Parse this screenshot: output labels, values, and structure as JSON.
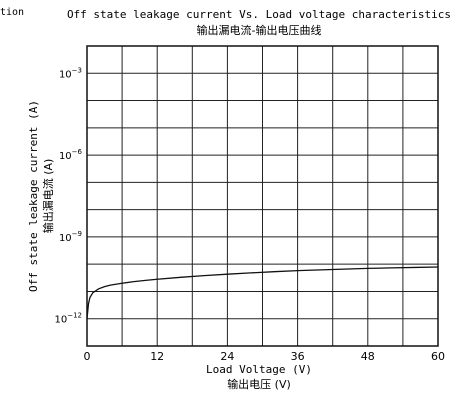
{
  "page": {
    "corner_fragment": "tion"
  },
  "chart_data": {
    "type": "line",
    "title": "Off state leakage current Vs. Load voltage characteristics",
    "subtitle": "输出漏电流-输出电压曲线",
    "xlabel": "Load Voltage (V)",
    "xlabel_cn": "输出电压 (V)",
    "ylabel": "Off state leakage current (A)",
    "ylabel_cn": "输出漏电流 (A)",
    "x_scale": "linear",
    "y_scale": "log",
    "xlim": [
      0,
      60
    ],
    "ylim": [
      1e-13,
      0.01
    ],
    "grid": true,
    "x_gridlines": [
      0,
      6,
      12,
      18,
      24,
      30,
      36,
      42,
      48,
      54,
      60
    ],
    "y_gridlines_exp": [
      -13,
      -12,
      -11,
      -10,
      -9,
      -8,
      -7,
      -6,
      -5,
      -4,
      -3,
      -2
    ],
    "x_ticks": [
      {
        "value": 0,
        "label": "0"
      },
      {
        "value": 12,
        "label": "12"
      },
      {
        "value": 24,
        "label": "24"
      },
      {
        "value": 36,
        "label": "36"
      },
      {
        "value": 48,
        "label": "48"
      },
      {
        "value": 60,
        "label": "60"
      }
    ],
    "y_ticks": [
      {
        "exp": -3,
        "base": "10",
        "sup": "−3"
      },
      {
        "exp": -6,
        "base": "10",
        "sup": "−6"
      },
      {
        "exp": -9,
        "base": "10",
        "sup": "−9"
      },
      {
        "exp": -12,
        "base": "10",
        "sup": "−12"
      }
    ],
    "series": [
      {
        "color": "#111111",
        "x": [
          0,
          0.25,
          0.5,
          1,
          2,
          3,
          4,
          6,
          8,
          10,
          12,
          16,
          20,
          24,
          28,
          32,
          36,
          40,
          44,
          48,
          52,
          56,
          60
        ],
        "y": [
          1e-12,
          3.5e-12,
          6e-12,
          9e-12,
          1.25e-11,
          1.5e-11,
          1.7e-11,
          2e-11,
          2.3e-11,
          2.55e-11,
          2.8e-11,
          3.3e-11,
          3.8e-11,
          4.3e-11,
          4.8e-11,
          5.3e-11,
          5.8e-11,
          6.2e-11,
          6.6e-11,
          7e-11,
          7.3e-11,
          7.6e-11,
          7.9e-11
        ]
      }
    ]
  }
}
